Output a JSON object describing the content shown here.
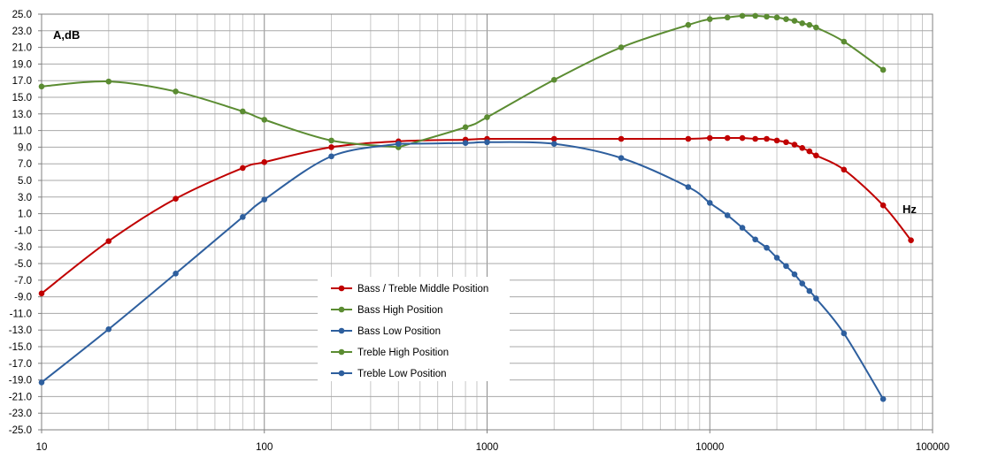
{
  "chart_data": {
    "type": "line",
    "xscale": "log",
    "xlim": [
      10,
      100000
    ],
    "ylim": [
      -25,
      25
    ],
    "grid": true,
    "ylabel": "A,dB",
    "xlabel": "Hz",
    "legend_position": "bottom-center",
    "xticks": [
      "10",
      "100",
      "1000",
      "10000",
      "100000"
    ],
    "yticks": [
      "25.0",
      "23.0",
      "21.0",
      "19.0",
      "17.0",
      "15.0",
      "13.0",
      "11.0",
      "9.0",
      "7.0",
      "5.0",
      "3.0",
      "1.0",
      "-1.0",
      "-3.0",
      "-5.0",
      "-7.0",
      "-9.0",
      "-11.0",
      "-13.0",
      "-15.0",
      "-17.0",
      "-19.0",
      "-21.0",
      "-23.0",
      "-25.0"
    ],
    "series": [
      {
        "name": "Bass / Treble Middle Position",
        "color": "#c00000",
        "x": [
          10,
          20,
          40,
          80,
          100,
          200,
          400,
          800,
          1000,
          2000,
          4000,
          8000,
          10000,
          12000,
          14000,
          16000,
          18000,
          20000,
          22000,
          24000,
          26000,
          28000,
          30000,
          40000,
          60000,
          80000
        ],
        "y": [
          -8.6,
          -2.3,
          2.8,
          6.5,
          7.2,
          9.0,
          9.7,
          9.9,
          10.0,
          10.0,
          10.0,
          10.0,
          10.1,
          10.1,
          10.1,
          10.0,
          10.0,
          9.8,
          9.6,
          9.3,
          8.9,
          8.5,
          8.0,
          6.3,
          2.0,
          -2.2
        ]
      },
      {
        "name": "Bass High Position",
        "color": "#5b8c32",
        "x": [
          10,
          20,
          40,
          80,
          100,
          200,
          400
        ],
        "y": [
          16.3,
          16.9,
          15.7,
          13.3,
          12.3,
          9.8,
          9.0
        ]
      },
      {
        "name": "Bass Low Position",
        "color": "#2e5f9e",
        "x": [
          10,
          20,
          40,
          80,
          100,
          200,
          400
        ],
        "y": [
          -19.3,
          -12.9,
          -6.2,
          0.6,
          2.7,
          7.9,
          9.4
        ]
      },
      {
        "name": "Treble High Position",
        "color": "#5b8c32",
        "x": [
          400,
          800,
          1000,
          2000,
          4000,
          8000,
          10000,
          12000,
          14000,
          16000,
          18000,
          20000,
          22000,
          24000,
          26000,
          28000,
          30000,
          40000,
          60000
        ],
        "y": [
          9.0,
          11.4,
          12.6,
          17.1,
          21.0,
          23.7,
          24.4,
          24.6,
          24.8,
          24.8,
          24.7,
          24.6,
          24.4,
          24.2,
          23.9,
          23.7,
          23.4,
          21.7,
          18.3
        ]
      },
      {
        "name": "Treble Low Position",
        "color": "#2e5f9e",
        "x": [
          400,
          800,
          1000,
          2000,
          4000,
          8000,
          10000,
          12000,
          14000,
          16000,
          18000,
          20000,
          22000,
          24000,
          26000,
          28000,
          30000,
          40000,
          60000
        ],
        "y": [
          9.4,
          9.5,
          9.6,
          9.4,
          7.7,
          4.2,
          2.3,
          0.8,
          -0.7,
          -2.1,
          -3.1,
          -4.3,
          -5.3,
          -6.3,
          -7.4,
          -8.3,
          -9.2,
          -13.4,
          -21.3
        ]
      }
    ]
  }
}
